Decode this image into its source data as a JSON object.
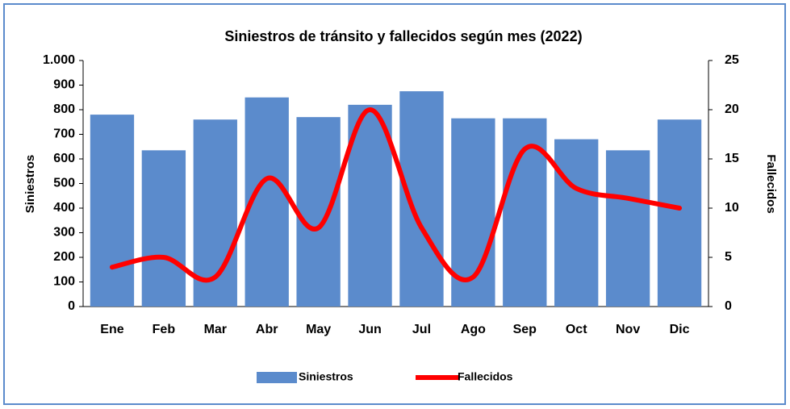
{
  "chart_data": {
    "type": "bar-line",
    "title": "Siniestros de tránsito y fallecidos según mes (2022)",
    "y_label": "Siniestros",
    "y2_label": "Fallecidos",
    "categories": [
      "Ene",
      "Feb",
      "Mar",
      "Abr",
      "May",
      "Jun",
      "Jul",
      "Ago",
      "Sep",
      "Oct",
      "Nov",
      "Dic"
    ],
    "series": [
      {
        "name": "Siniestros",
        "type": "bar",
        "color": "#5b8bcc",
        "values": [
          780,
          635,
          760,
          850,
          770,
          820,
          875,
          765,
          765,
          680,
          635,
          760
        ]
      },
      {
        "name": "Fallecidos",
        "type": "line",
        "axis": "y2",
        "smooth": true,
        "color": "#ff0000",
        "values": [
          4,
          5,
          3,
          13,
          8,
          20,
          8,
          3,
          16,
          12,
          11,
          10
        ]
      }
    ],
    "ylim": [
      0,
      1000
    ],
    "yticks": [
      0,
      100,
      200,
      300,
      400,
      500,
      600,
      700,
      800,
      900,
      {
        "value": 1000,
        "label": "1.000"
      }
    ],
    "y2lim": [
      0,
      25
    ],
    "y2ticks": [
      0,
      5,
      10,
      15,
      20,
      25
    ],
    "legend": "bottom"
  }
}
